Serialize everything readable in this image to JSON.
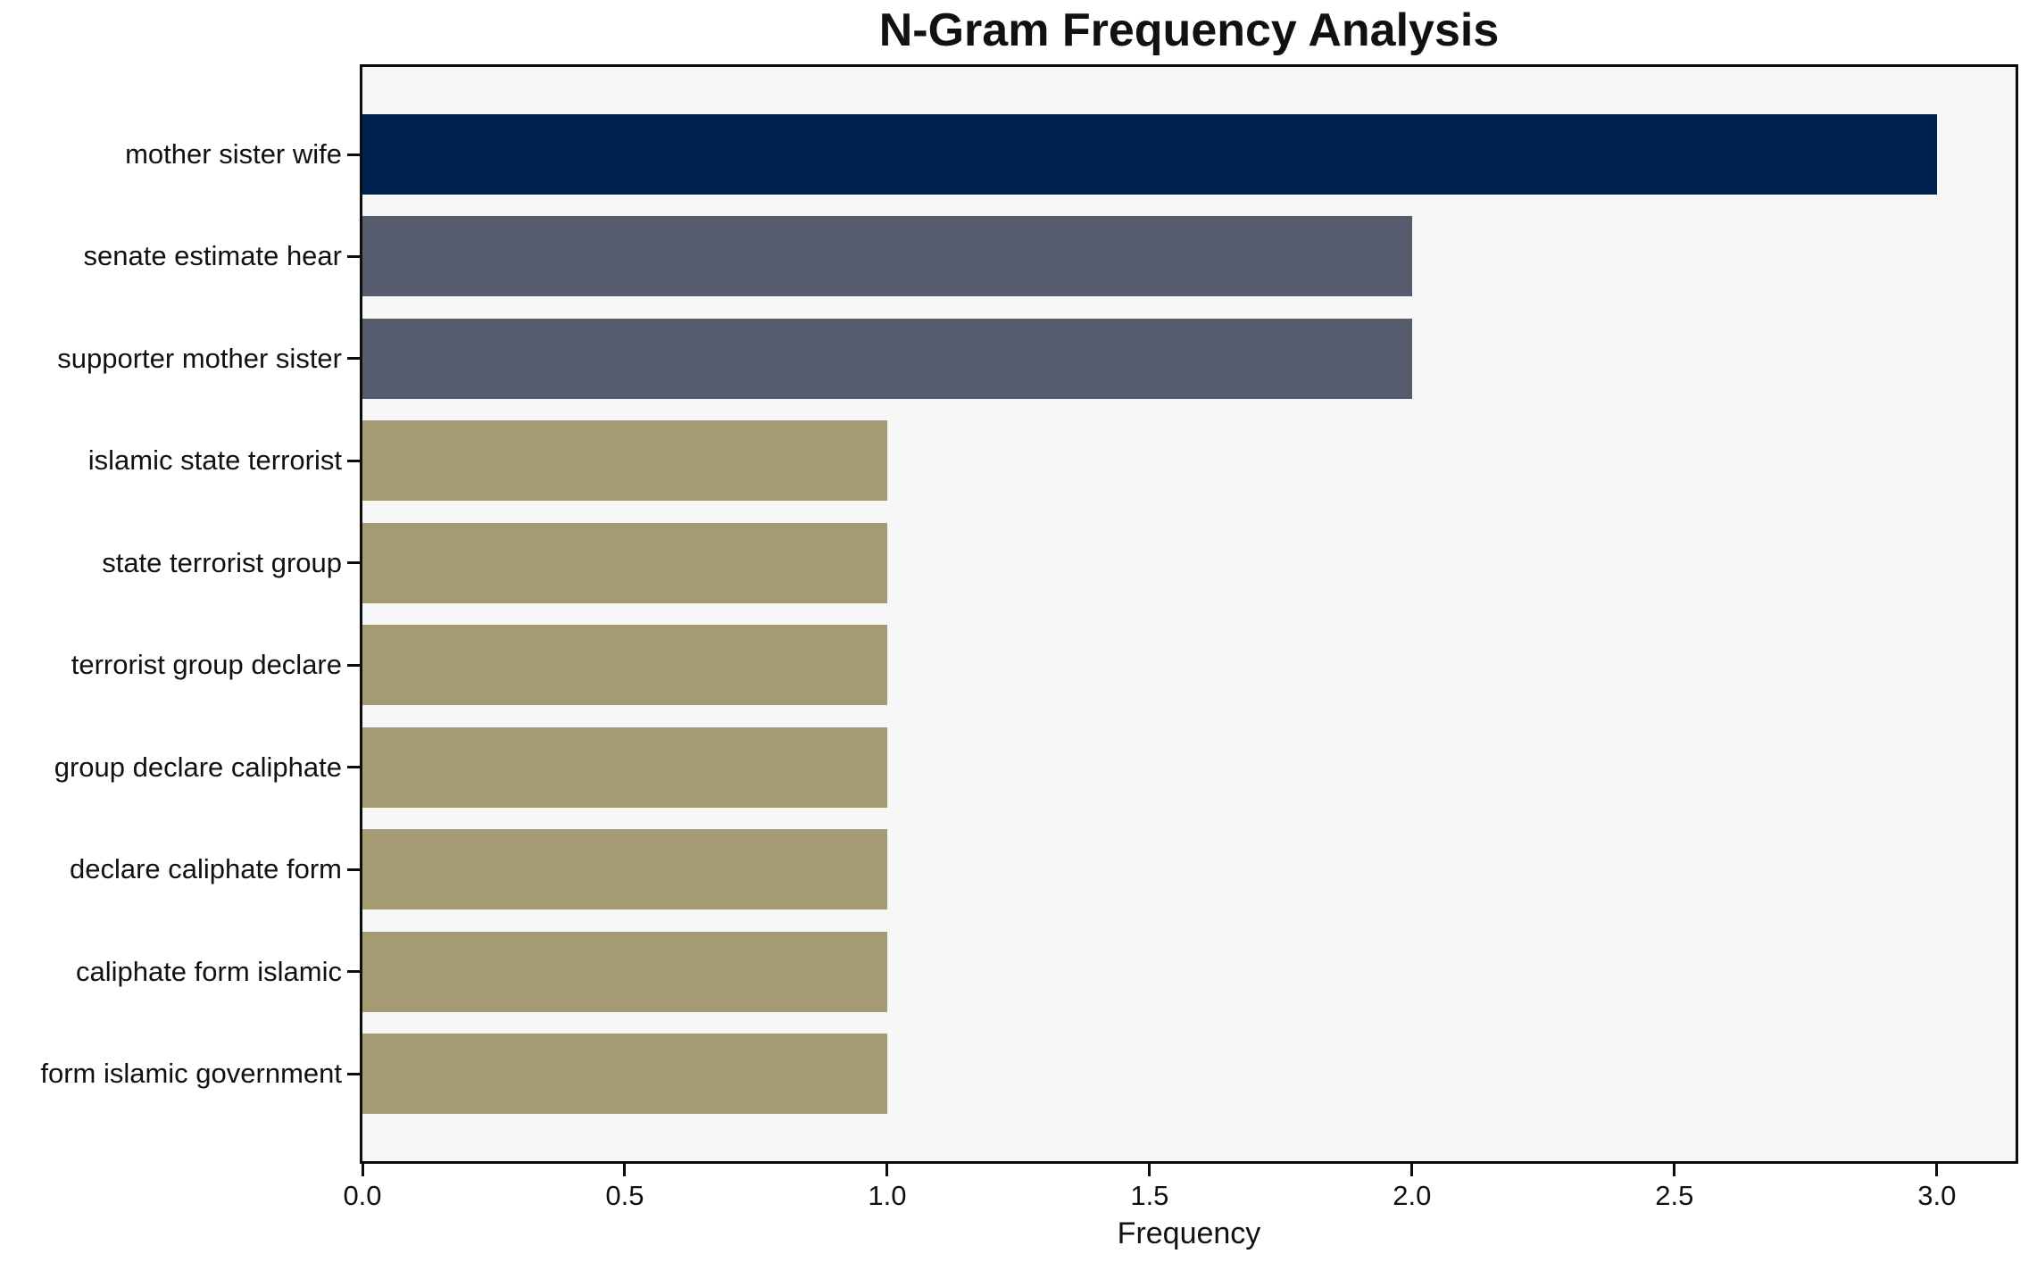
{
  "chart_data": {
    "type": "bar",
    "orientation": "horizontal",
    "title": "N-Gram Frequency Analysis",
    "xlabel": "Frequency",
    "ylabel": "",
    "categories": [
      "mother sister wife",
      "senate estimate hear",
      "supporter mother sister",
      "islamic state terrorist",
      "state terrorist group",
      "terrorist group declare",
      "group declare caliphate",
      "declare caliphate form",
      "caliphate form islamic",
      "form islamic government"
    ],
    "values": [
      3,
      2,
      2,
      1,
      1,
      1,
      1,
      1,
      1,
      1
    ],
    "bar_colors": [
      "#00214d",
      "#565c6d",
      "#565c6d",
      "#a49b72",
      "#a49b72",
      "#a49b72",
      "#a49b72",
      "#a49b72",
      "#a49b72",
      "#a49b72"
    ],
    "xlim": [
      0,
      3.15
    ],
    "xticks": [
      0.0,
      0.5,
      1.0,
      1.5,
      2.0,
      2.5,
      3.0
    ],
    "xtick_labels": [
      "0.0",
      "0.5",
      "1.0",
      "1.5",
      "2.0",
      "2.5",
      "3.0"
    ],
    "grid": false,
    "legend": null,
    "colors": {
      "plot_background": "#f7f7f8",
      "figure_background": "#ffffff",
      "axis_frame": "#0d0d0d",
      "text": "#111111"
    }
  }
}
